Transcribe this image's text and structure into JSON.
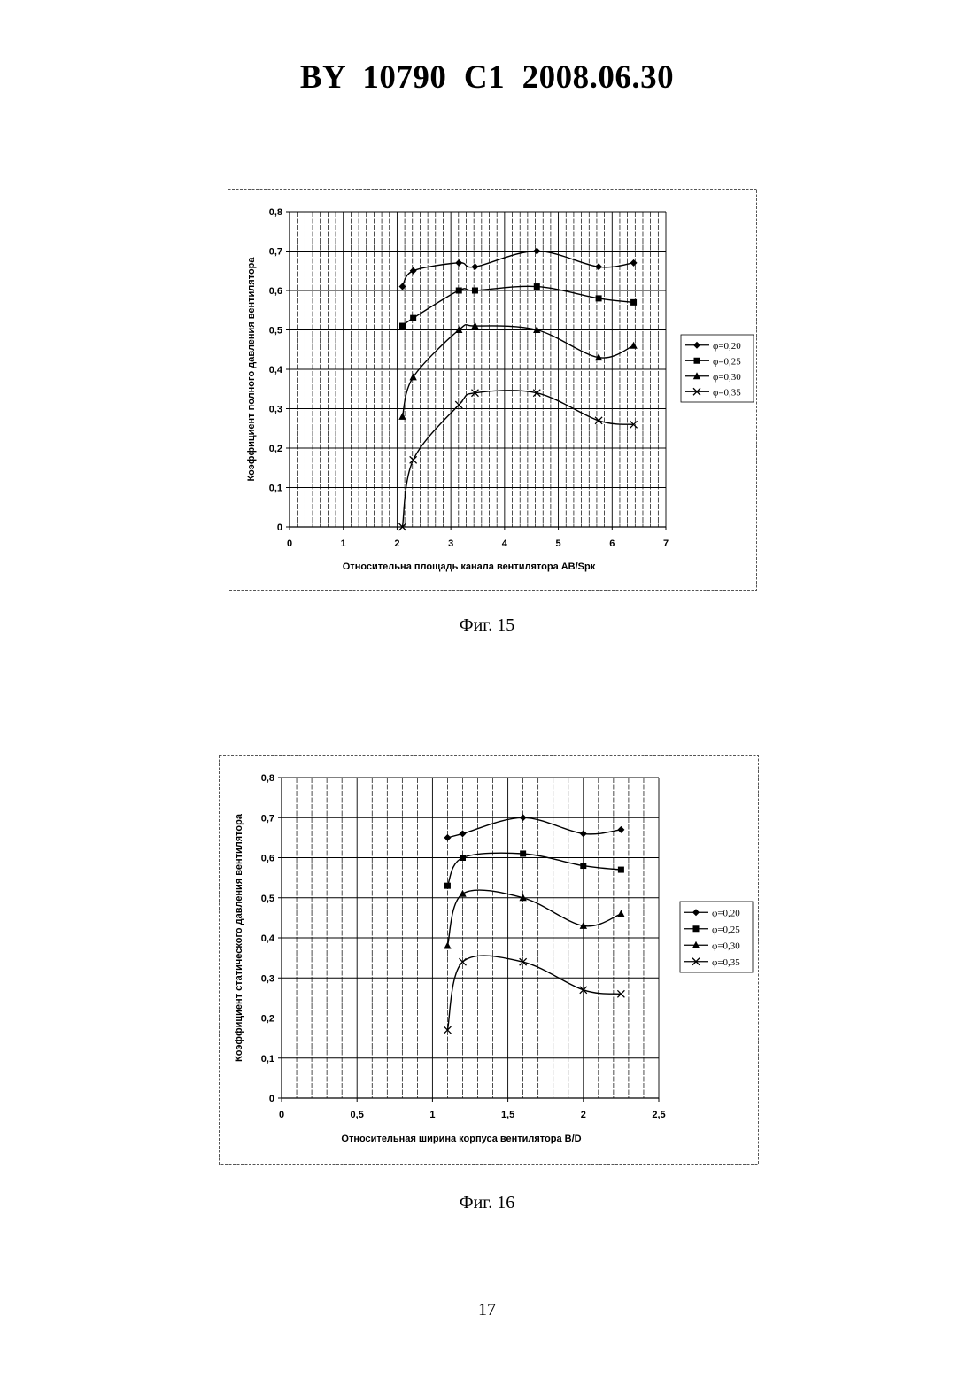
{
  "header": {
    "text": "BY  10790  C1  2008.06.30"
  },
  "figures": [
    {
      "caption": "Фиг. 15"
    },
    {
      "caption": "Фиг. 16"
    }
  ],
  "page_number": "17",
  "colors": {
    "line": "#000000",
    "grid": "#000000",
    "background": "#ffffff"
  },
  "chart_data": [
    {
      "type": "line",
      "title": "",
      "xlabel": "Относительна площадь канала вентилятора АВ/Sрк",
      "ylabel": "Коэффициент полного давления вентилятора",
      "xlim": [
        0,
        7
      ],
      "ylim": [
        0,
        0.8
      ],
      "xticks": [
        0,
        1,
        2,
        3,
        4,
        5,
        6,
        7
      ],
      "xtick_labels": [
        "0",
        "1",
        "2",
        "3",
        "4",
        "5",
        "6",
        "7"
      ],
      "yticks": [
        0,
        0.1,
        0.2,
        0.3,
        0.4,
        0.5,
        0.6,
        0.7,
        0.8
      ],
      "ytick_labels": [
        "0",
        "0,1",
        "0,2",
        "0,3",
        "0,4",
        "0,5",
        "0,6",
        "0,7",
        "0,8"
      ],
      "grid": true,
      "legend_position": "right",
      "series": [
        {
          "name": "φ=0,20",
          "marker": "diamond",
          "x": [
            2.1,
            2.3,
            3.15,
            3.45,
            4.6,
            5.75,
            6.4
          ],
          "y": [
            0.61,
            0.65,
            0.67,
            0.66,
            0.7,
            0.66,
            0.67
          ]
        },
        {
          "name": "φ=0,25",
          "marker": "square",
          "x": [
            2.1,
            2.3,
            3.15,
            3.45,
            4.6,
            5.75,
            6.4
          ],
          "y": [
            0.51,
            0.53,
            0.6,
            0.6,
            0.61,
            0.58,
            0.57
          ]
        },
        {
          "name": "φ=0,30",
          "marker": "triangle",
          "x": [
            2.1,
            2.3,
            3.15,
            3.45,
            4.6,
            5.75,
            6.4
          ],
          "y": [
            0.28,
            0.38,
            0.5,
            0.51,
            0.5,
            0.43,
            0.46
          ]
        },
        {
          "name": "φ=0,35",
          "marker": "x",
          "x": [
            2.1,
            2.3,
            3.15,
            3.45,
            4.6,
            5.75,
            6.4
          ],
          "y": [
            0.0,
            0.17,
            0.31,
            0.34,
            0.34,
            0.27,
            0.26
          ]
        }
      ]
    },
    {
      "type": "line",
      "title": "",
      "xlabel": "Относительная ширина корпуса вентилятора В/D",
      "ylabel": "Коэффициент статического давления вентилятора",
      "xlim": [
        0,
        2.5
      ],
      "ylim": [
        0,
        0.8
      ],
      "xticks": [
        0,
        0.5,
        1,
        1.5,
        2,
        2.5
      ],
      "xtick_labels": [
        "0",
        "0,5",
        "1",
        "1,5",
        "2",
        "2,5"
      ],
      "yticks": [
        0,
        0.1,
        0.2,
        0.3,
        0.4,
        0.5,
        0.6,
        0.7,
        0.8
      ],
      "ytick_labels": [
        "0",
        "0,1",
        "0,2",
        "0,3",
        "0,4",
        "0,5",
        "0,6",
        "0,7",
        "0,8"
      ],
      "grid": true,
      "legend_position": "right",
      "series": [
        {
          "name": "φ=0,20",
          "marker": "diamond",
          "x": [
            1.1,
            1.2,
            1.6,
            2.0,
            2.25
          ],
          "y": [
            0.65,
            0.66,
            0.7,
            0.66,
            0.67
          ]
        },
        {
          "name": "φ=0,25",
          "marker": "square",
          "x": [
            1.1,
            1.2,
            1.6,
            2.0,
            2.25
          ],
          "y": [
            0.53,
            0.6,
            0.61,
            0.58,
            0.57
          ]
        },
        {
          "name": "φ=0,30",
          "marker": "triangle",
          "x": [
            1.1,
            1.2,
            1.6,
            2.0,
            2.25
          ],
          "y": [
            0.38,
            0.51,
            0.5,
            0.43,
            0.46
          ]
        },
        {
          "name": "φ=0,35",
          "marker": "x",
          "x": [
            1.1,
            1.2,
            1.6,
            2.0,
            2.25
          ],
          "y": [
            0.17,
            0.34,
            0.34,
            0.27,
            0.26
          ]
        }
      ]
    }
  ]
}
